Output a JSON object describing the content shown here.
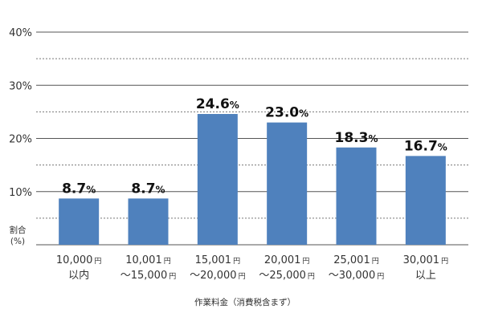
{
  "chart_data": {
    "type": "bar",
    "title": "",
    "categories": [
      {
        "line1": "10,000",
        "unit1": "円",
        "line2": "以内",
        "unit2": ""
      },
      {
        "line1": "10,001",
        "unit1": "円",
        "line2": "～15,000",
        "unit2": "円"
      },
      {
        "line1": "15,001",
        "unit1": "円",
        "line2": "～20,000",
        "unit2": "円"
      },
      {
        "line1": "20,001",
        "unit1": "円",
        "line2": "～25,000",
        "unit2": "円"
      },
      {
        "line1": "25,001",
        "unit1": "円",
        "line2": "～30,000",
        "unit2": "円"
      },
      {
        "line1": "30,001",
        "unit1": "円",
        "line2": "以上",
        "unit2": ""
      }
    ],
    "values": [
      8.7,
      8.7,
      24.6,
      23.0,
      18.3,
      16.7
    ],
    "value_labels": [
      "8.7",
      "8.7",
      "24.6",
      "23.0",
      "18.3",
      "16.7"
    ],
    "value_unit": "%",
    "ylim": [
      0,
      40
    ],
    "yticks": [
      {
        "value": 10,
        "label": "10%"
      },
      {
        "value": 20,
        "label": "20%"
      },
      {
        "value": 30,
        "label": "30%"
      },
      {
        "value": 40,
        "label": "40%"
      }
    ],
    "minor_grid": [
      5,
      15,
      25,
      35
    ],
    "ylabel_lines": [
      "割合",
      "(%)"
    ],
    "xlabel": "作業料金（消費税含まず）",
    "bar_color": "#4f81bd",
    "grid": true
  }
}
